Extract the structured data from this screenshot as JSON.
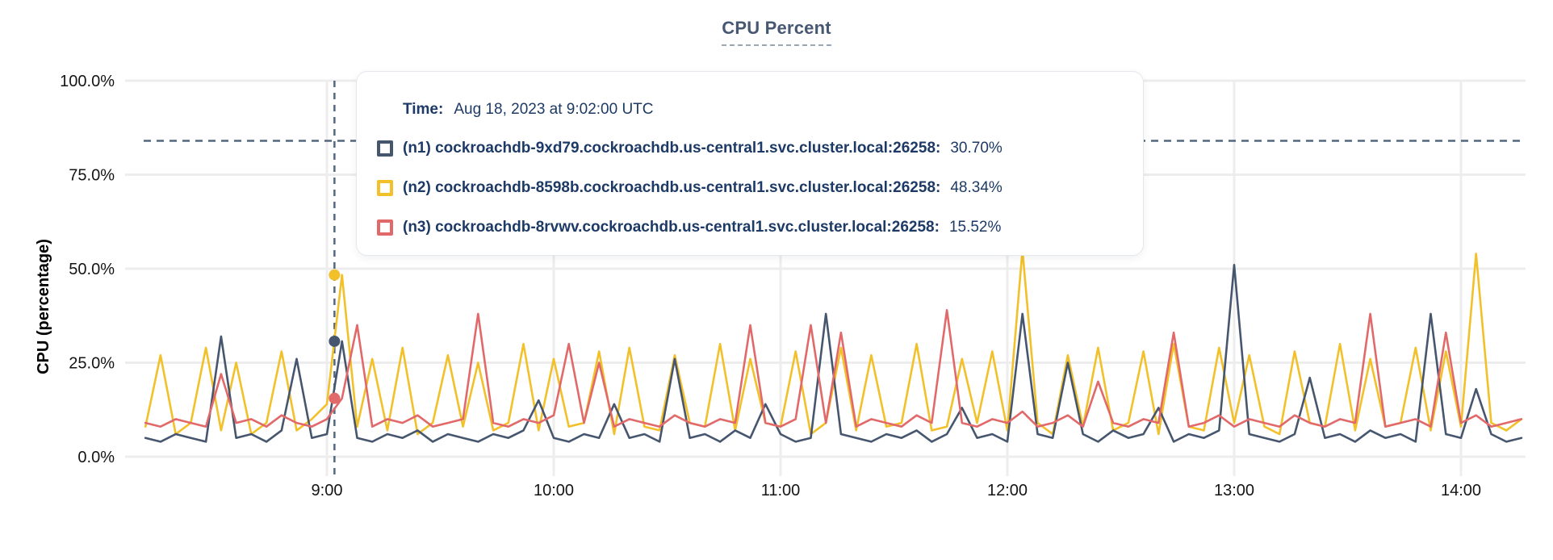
{
  "title": {
    "text": "CPU Percent"
  },
  "tooltip": {
    "time_label": "Time:",
    "time_value": "Aug 18, 2023 at 9:02:00 UTC",
    "rows": [
      {
        "label": "(n1) cockroachdb-9xd79.cockroachdb.us-central1.svc.cluster.local:26258:",
        "value": "30.70%"
      },
      {
        "label": "(n2) cockroachdb-8598b.cockroachdb.us-central1.svc.cluster.local:26258:",
        "value": "48.34%"
      },
      {
        "label": "(n3) cockroachdb-8rvwv.cockroachdb.us-central1.svc.cluster.local:26258:",
        "value": "15.52%"
      }
    ]
  },
  "colors": {
    "title": "#475872",
    "tooltip_text": "#1d3a66",
    "gridline": "#ededed",
    "dashed_guides": "#53677e",
    "n1": "#46566e",
    "n2": "#f2c029",
    "n3": "#e2696a"
  },
  "chart_data": {
    "type": "line",
    "title": "CPU Percent",
    "ylabel": "CPU (percentage)",
    "ylim": [
      0,
      100
    ],
    "grid": true,
    "yticks": [
      {
        "value": 0,
        "label": "0.0%"
      },
      {
        "value": 25,
        "label": "25.0%"
      },
      {
        "value": 50,
        "label": "50.0%"
      },
      {
        "value": 75,
        "label": "75.0%"
      },
      {
        "value": 100,
        "label": "100.0%"
      }
    ],
    "xticks": [
      {
        "minutes": 540,
        "label": "9:00"
      },
      {
        "minutes": 600,
        "label": "10:00"
      },
      {
        "minutes": 660,
        "label": "11:00"
      },
      {
        "minutes": 720,
        "label": "12:00"
      },
      {
        "minutes": 780,
        "label": "13:00"
      },
      {
        "minutes": 840,
        "label": "14:00"
      }
    ],
    "x_start_minutes": 492,
    "x_step_minutes": 4,
    "threshold_line_percent": 84,
    "hover": {
      "label": "9:02",
      "minutes": 542
    },
    "legend_position": "tooltip",
    "series": [
      {
        "id": "n1",
        "name": "(n1) cockroachdb-9xd79.cockroachdb.us-central1.svc.cluster.local:26258",
        "color": "#46566e",
        "hover_value": 30.7,
        "values": [
          5,
          4,
          6,
          5,
          4,
          32,
          5,
          6,
          4,
          7,
          26,
          5,
          6,
          30.7,
          5,
          4,
          6,
          5,
          7,
          4,
          6,
          5,
          4,
          6,
          5,
          7,
          15,
          5,
          4,
          6,
          5,
          14,
          5,
          6,
          4,
          26,
          5,
          6,
          4,
          7,
          5,
          14,
          6,
          4,
          5,
          38,
          6,
          5,
          4,
          6,
          5,
          7,
          4,
          6,
          13,
          5,
          6,
          4,
          38,
          6,
          5,
          25,
          6,
          4,
          7,
          5,
          6,
          13,
          4,
          6,
          5,
          7,
          51,
          6,
          5,
          4,
          6,
          21,
          5,
          6,
          4,
          7,
          5,
          6,
          4,
          38,
          6,
          5,
          18,
          6,
          4,
          5
        ]
      },
      {
        "id": "n2",
        "name": "(n2) cockroachdb-8598b.cockroachdb.us-central1.svc.cluster.local:26258",
        "color": "#f2c029",
        "hover_value": 48.34,
        "values": [
          8,
          27,
          6,
          9,
          29,
          7,
          25,
          6,
          9,
          28,
          7,
          10,
          14,
          48.34,
          8,
          26,
          7,
          29,
          6,
          9,
          27,
          8,
          25,
          7,
          9,
          30,
          7,
          26,
          8,
          9,
          28,
          6,
          29,
          8,
          7,
          27,
          9,
          8,
          30,
          7,
          26,
          9,
          8,
          28,
          6,
          9,
          29,
          7,
          27,
          8,
          9,
          30,
          7,
          8,
          26,
          9,
          28,
          7,
          55,
          9,
          6,
          27,
          8,
          29,
          7,
          9,
          28,
          6,
          30,
          8,
          7,
          29,
          9,
          27,
          8,
          6,
          28,
          9,
          8,
          30,
          7,
          26,
          8,
          9,
          29,
          7,
          28,
          8,
          54,
          9,
          7,
          10
        ]
      },
      {
        "id": "n3",
        "name": "(n3) cockroachdb-8rvwv.cockroachdb.us-central1.svc.cluster.local:26258",
        "color": "#e2696a",
        "hover_value": 15.52,
        "values": [
          9,
          8,
          10,
          9,
          8,
          22,
          9,
          10,
          8,
          11,
          9,
          8,
          10,
          15.52,
          35,
          8,
          10,
          9,
          11,
          8,
          9,
          10,
          38,
          9,
          8,
          10,
          9,
          11,
          30,
          9,
          25,
          8,
          10,
          9,
          8,
          11,
          9,
          8,
          10,
          9,
          35,
          9,
          8,
          10,
          35,
          9,
          33,
          8,
          10,
          9,
          8,
          11,
          9,
          39,
          9,
          8,
          10,
          9,
          12,
          8,
          9,
          11,
          8,
          20,
          9,
          8,
          10,
          9,
          33,
          8,
          9,
          11,
          8,
          10,
          9,
          8,
          11,
          9,
          8,
          10,
          9,
          38,
          8,
          9,
          10,
          8,
          33,
          9,
          11,
          8,
          9,
          10
        ]
      }
    ]
  }
}
